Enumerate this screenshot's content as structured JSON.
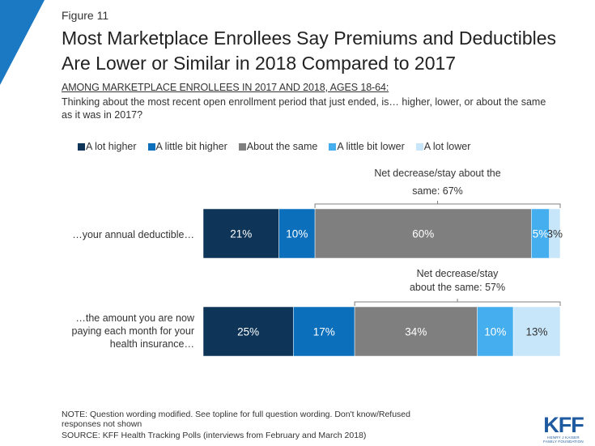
{
  "figure_label": "Figure 11",
  "title": "Most Marketplace Enrollees Say Premiums and Deductibles Are Lower or Similar in 2018 Compared to 2017",
  "subtitle": "AMONG MARKETPLACE ENROLLEES IN 2017 AND 2018, AGES 18-64:",
  "question": "Thinking about the most recent open enrollment period that just ended, is… higher, lower, or about the same as it was in 2017?",
  "colors": {
    "accent": "#1b78c2",
    "a_lot_higher": "#0e3558",
    "a_little_higher": "#0c6fbc",
    "about_same": "#7f7f7f",
    "a_little_lower": "#45aeee",
    "a_lot_lower": "#c8e6fa"
  },
  "chart_data": {
    "type": "bar",
    "orientation": "horizontal-stacked",
    "title": "Most Marketplace Enrollees Say Premiums and Deductibles Are Lower or Similar in 2018 Compared to 2017",
    "xlim": [
      0,
      100
    ],
    "categories": [
      "…your annual deductible…",
      "…the amount you are now paying each month for your health insurance…"
    ],
    "series": [
      {
        "name": "A lot higher",
        "values": [
          21,
          25
        ],
        "labels": [
          "21%",
          "25%"
        ]
      },
      {
        "name": "A little bit higher",
        "values": [
          10,
          17
        ],
        "labels": [
          "10%",
          "17%"
        ]
      },
      {
        "name": "About the same",
        "values": [
          60,
          34
        ],
        "labels": [
          "60%",
          "34%"
        ]
      },
      {
        "name": "A little bit lower",
        "values": [
          5,
          10
        ],
        "labels": [
          "5%",
          "10%"
        ]
      },
      {
        "name": "A lot lower",
        "values": [
          3,
          13
        ],
        "labels": [
          "3%",
          "13%"
        ]
      }
    ],
    "annotations": [
      {
        "lines": [
          "Net decrease/stay about the",
          "same: 67%"
        ]
      },
      {
        "lines": [
          "Net decrease/stay",
          "about the same: 57%"
        ]
      }
    ],
    "legend": "top"
  },
  "note": "NOTE: Question wording modified. See topline for full question wording. Don't know/Refused responses not shown",
  "source": "SOURCE: KFF Health Tracking Polls (interviews from February and March 2018)",
  "logo": {
    "main": "KFF",
    "line1": "HENRY J KAISER",
    "line2": "FAMILY FOUNDATION"
  }
}
